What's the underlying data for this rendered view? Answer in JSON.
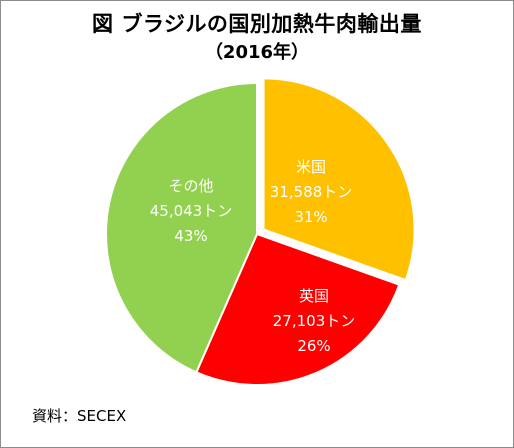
{
  "title": "図  ブラジルの国別加熱牛肉輸出量",
  "subtitle": "（2016年）",
  "source": "資料：SECEX",
  "chart_data": {
    "type": "pie",
    "title": "図  ブラジルの国別加熱牛肉輸出量",
    "subtitle": "（2016年）",
    "slices": [
      {
        "name": "米国",
        "value": 31588,
        "value_label": "31,588トン",
        "percent_label": "31%",
        "color": "#FFC000",
        "exploded": true
      },
      {
        "name": "英国",
        "value": 27103,
        "value_label": "27,103トン",
        "percent_label": "26%",
        "color": "#FF0000",
        "exploded": false
      },
      {
        "name": "その他",
        "value": 45043,
        "value_label": "45,043トン",
        "percent_label": "43%",
        "color": "#92D050",
        "exploded": false
      }
    ],
    "legend": "none"
  }
}
